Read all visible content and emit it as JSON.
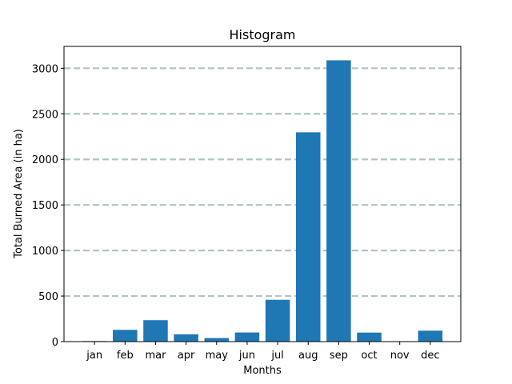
{
  "chart_data": {
    "type": "bar",
    "title": "Histogram",
    "xlabel": "Months",
    "ylabel": "Total Burned Area (in ha)",
    "categories": [
      "jan",
      "feb",
      "mar",
      "apr",
      "may",
      "jun",
      "jul",
      "aug",
      "sep",
      "oct",
      "nov",
      "dec"
    ],
    "values": [
      6,
      129,
      235,
      80,
      39,
      100,
      459,
      2297,
      3087,
      99,
      0,
      120
    ],
    "ylim": [
      0,
      3240
    ],
    "yticks": [
      0,
      500,
      1000,
      1500,
      2000,
      2500,
      3000
    ],
    "grid": "y-dashed",
    "colors": {
      "bar": "#1f77b4",
      "grid": "#b0c4c4",
      "axis": "#000000"
    }
  }
}
